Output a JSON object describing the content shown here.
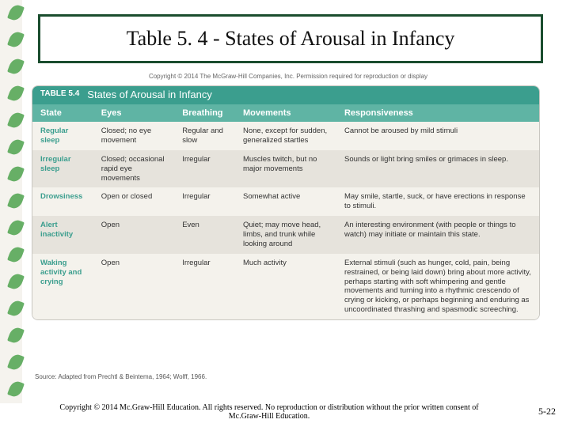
{
  "colors": {
    "title_border": "#1a4d2e",
    "teal_dark": "#3b9e8e",
    "teal_light": "#5fb4a4",
    "row_alt": "#e6e3dc",
    "row_plain": "#f4f2ec",
    "leaf": "#4da24d"
  },
  "slide": {
    "title": "Table 5. 4 - States of Arousal in Infancy"
  },
  "topcopy": "Copyright © 2014 The McGraw-Hill Companies, Inc. Permission required for reproduction or display",
  "table": {
    "badge": "TABLE 5.4",
    "caption": "States of Arousal in Infancy",
    "columns": [
      "State",
      "Eyes",
      "Breathing",
      "Movements",
      "Responsiveness"
    ],
    "col_widths_pct": [
      12,
      16,
      12,
      20,
      40
    ],
    "rows": [
      {
        "state": "Regular sleep",
        "eyes": "Closed; no eye movement",
        "breathing": "Regular and slow",
        "movements": "None, except for sudden, generalized startles",
        "resp": "Cannot be aroused by mild stimuli"
      },
      {
        "state": "Irregular sleep",
        "eyes": "Closed; occasional rapid eye movements",
        "breathing": "Irregular",
        "movements": "Muscles twitch, but no major movements",
        "resp": "Sounds or light bring smiles or grimaces in sleep."
      },
      {
        "state": "Drowsiness",
        "eyes": "Open or closed",
        "breathing": "Irregular",
        "movements": "Somewhat active",
        "resp": "May smile, startle, suck, or have erections in response to stimuli."
      },
      {
        "state": "Alert inactivity",
        "eyes": "Open",
        "breathing": "Even",
        "movements": "Quiet; may move head, limbs, and trunk while looking around",
        "resp": "An interesting environment (with people or things to watch) may initiate or maintain this state."
      },
      {
        "state": "Waking activity and crying",
        "eyes": "Open",
        "breathing": "Irregular",
        "movements": "Much activity",
        "resp": "External stimuli (such as hunger, cold, pain, being restrained, or being laid down) bring about more activity, perhaps starting with soft whimpering and gentle movements and turning into a rhythmic crescendo of crying or kicking, or perhaps beginning and enduring as uncoordinated thrashing and spasmodic screeching."
      }
    ]
  },
  "source": "Source: Adapted from Prechtl & Beintema, 1964; Wolff, 1966.",
  "footer": {
    "copy": "Copyright © 2014 Mc.Graw-Hill Education. All rights reserved. No reproduction or distribution without the prior written consent of Mc.Graw-Hill Education.",
    "page": "5-22"
  },
  "deco": {
    "count": 15
  }
}
